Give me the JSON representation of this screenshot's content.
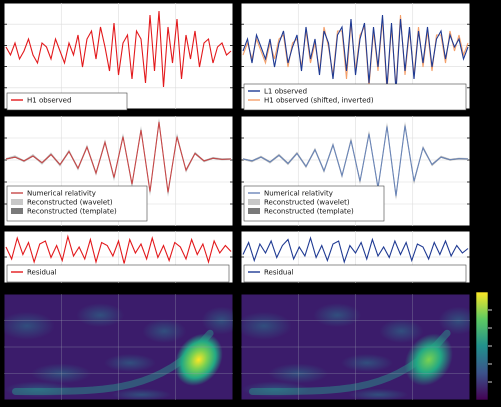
{
  "colors": {
    "h1": "#e3191c",
    "l1": "#1f3a93",
    "h1_inverted": "#f4a06b",
    "nr_h1": "#c84848",
    "nr_l1": "#6b86b8",
    "band_light": "#c8c8c8",
    "band_dark": "#7a7a7a",
    "panel_bg": "#ffffff",
    "grid": "#dcdcdc"
  },
  "legends": {
    "h1_observed": "H1 observed",
    "l1_observed": "L1 observed",
    "h1_shifted_inverted": "H1 observed (shifted, inverted)",
    "numerical_relativity": "Numerical relativity",
    "reconstructed_wavelet": "Reconstructed (wavelet)",
    "reconstructed_template": "Reconstructed (template)",
    "residual": "Residual"
  },
  "chart_data": [
    {
      "type": "line",
      "panel": "h1-observed",
      "title": "",
      "xlabel": "",
      "ylabel": "",
      "x": [
        0,
        0.02,
        0.04,
        0.06,
        0.08,
        0.1,
        0.12,
        0.14,
        0.16,
        0.18,
        0.2,
        0.22,
        0.24,
        0.26,
        0.28,
        0.3,
        0.32,
        0.34,
        0.36,
        0.38,
        0.4,
        0.42,
        0.44,
        0.46,
        0.48,
        0.5,
        0.52,
        0.54,
        0.56,
        0.58,
        0.6,
        0.62,
        0.64,
        0.66,
        0.68,
        0.7,
        0.72,
        0.74,
        0.76,
        0.78,
        0.8,
        0.82,
        0.84,
        0.86,
        0.88,
        0.9,
        0.92,
        0.94,
        0.96,
        0.98,
        1.0
      ],
      "series": [
        {
          "name": "H1 observed",
          "values": [
            0.1,
            -0.1,
            0.2,
            -0.2,
            0.0,
            0.3,
            -0.1,
            -0.3,
            0.2,
            0.1,
            -0.2,
            0.3,
            0.0,
            -0.3,
            0.2,
            -0.1,
            0.4,
            -0.4,
            0.3,
            0.5,
            -0.2,
            0.6,
            0.1,
            -0.5,
            0.7,
            -0.6,
            0.2,
            0.4,
            -0.7,
            0.5,
            0.3,
            -0.8,
            0.9,
            -0.5,
            1.0,
            -0.9,
            0.6,
            -0.3,
            0.8,
            -0.7,
            0.4,
            -0.2,
            0.5,
            -0.4,
            0.2,
            0.3,
            -0.3,
            0.1,
            0.2,
            -0.1,
            0.0
          ]
        }
      ]
    },
    {
      "type": "line",
      "panel": "l1-observed",
      "title": "",
      "xlabel": "",
      "ylabel": "",
      "x": [
        0,
        0.02,
        0.04,
        0.06,
        0.08,
        0.1,
        0.12,
        0.14,
        0.16,
        0.18,
        0.2,
        0.22,
        0.24,
        0.26,
        0.28,
        0.3,
        0.32,
        0.34,
        0.36,
        0.38,
        0.4,
        0.42,
        0.44,
        0.46,
        0.48,
        0.5,
        0.52,
        0.54,
        0.56,
        0.58,
        0.6,
        0.62,
        0.64,
        0.66,
        0.68,
        0.7,
        0.72,
        0.74,
        0.76,
        0.78,
        0.8,
        0.82,
        0.84,
        0.86,
        0.88,
        0.9,
        0.92,
        0.94,
        0.96,
        0.98,
        1.0
      ],
      "series": [
        {
          "name": "L1 observed",
          "values": [
            0.0,
            0.3,
            -0.3,
            0.4,
            0.1,
            -0.2,
            0.3,
            -0.4,
            0.2,
            0.5,
            -0.3,
            0.1,
            0.4,
            -0.5,
            0.6,
            -0.2,
            0.3,
            -0.6,
            0.5,
            0.2,
            -0.7,
            0.4,
            0.6,
            -0.5,
            0.8,
            -0.6,
            0.3,
            0.7,
            -0.8,
            0.6,
            -0.4,
            0.9,
            -0.9,
            0.7,
            -1.0,
            0.8,
            -0.5,
            0.6,
            -0.7,
            0.5,
            -0.3,
            0.6,
            -0.4,
            0.3,
            0.5,
            -0.2,
            0.4,
            0.1,
            0.3,
            -0.2,
            0.1
          ]
        },
        {
          "name": "H1 observed (shifted, inverted)",
          "values": [
            -0.1,
            0.2,
            -0.2,
            0.3,
            0.0,
            -0.3,
            0.2,
            -0.2,
            0.3,
            0.4,
            -0.4,
            0.2,
            0.3,
            -0.4,
            0.5,
            -0.3,
            0.2,
            -0.5,
            0.6,
            0.1,
            -0.6,
            0.5,
            0.5,
            -0.7,
            0.7,
            -0.5,
            0.4,
            0.6,
            -0.9,
            0.5,
            -0.5,
            0.8,
            -1.0,
            0.6,
            -0.9,
            0.9,
            -0.6,
            0.5,
            -0.6,
            0.6,
            -0.4,
            0.5,
            -0.5,
            0.4,
            0.4,
            -0.3,
            0.5,
            0.0,
            0.4,
            -0.1,
            0.2
          ]
        }
      ]
    },
    {
      "type": "line",
      "panel": "h1-reconstruction",
      "title": "",
      "xlabel": "",
      "ylabel": "",
      "x": [
        0,
        0.04,
        0.08,
        0.12,
        0.16,
        0.2,
        0.24,
        0.28,
        0.32,
        0.36,
        0.4,
        0.44,
        0.48,
        0.52,
        0.56,
        0.6,
        0.64,
        0.68,
        0.72,
        0.76,
        0.8,
        0.84,
        0.88,
        0.92,
        0.96,
        1.0
      ],
      "series": [
        {
          "name": "Numerical relativity",
          "values": [
            0.0,
            0.05,
            -0.05,
            0.08,
            -0.1,
            0.12,
            -0.15,
            0.2,
            -0.25,
            0.32,
            -0.38,
            0.45,
            -0.5,
            0.6,
            -0.68,
            0.78,
            -0.88,
            1.0,
            -0.9,
            0.6,
            -0.3,
            0.15,
            -0.05,
            0.02,
            -0.01,
            0.0
          ]
        },
        {
          "name": "Reconstructed (wavelet)",
          "values": [
            0.0,
            0.07,
            -0.06,
            0.1,
            -0.12,
            0.14,
            -0.17,
            0.22,
            -0.27,
            0.34,
            -0.4,
            0.47,
            -0.53,
            0.62,
            -0.7,
            0.8,
            -0.9,
            1.0,
            -0.92,
            0.62,
            -0.32,
            0.16,
            -0.06,
            0.03,
            -0.01,
            0.0
          ]
        },
        {
          "name": "Reconstructed (template)",
          "values": [
            0.0,
            0.05,
            -0.05,
            0.08,
            -0.1,
            0.12,
            -0.15,
            0.2,
            -0.25,
            0.32,
            -0.38,
            0.45,
            -0.5,
            0.6,
            -0.68,
            0.78,
            -0.88,
            1.0,
            -0.9,
            0.6,
            -0.3,
            0.15,
            -0.05,
            0.02,
            -0.01,
            0.0
          ]
        }
      ]
    },
    {
      "type": "line",
      "panel": "l1-reconstruction",
      "title": "",
      "xlabel": "",
      "ylabel": "",
      "x": [
        0,
        0.04,
        0.08,
        0.12,
        0.16,
        0.2,
        0.24,
        0.28,
        0.32,
        0.36,
        0.4,
        0.44,
        0.48,
        0.52,
        0.56,
        0.6,
        0.64,
        0.68,
        0.72,
        0.76,
        0.8,
        0.84,
        0.88,
        0.92,
        0.96,
        1.0
      ],
      "series": [
        {
          "name": "Numerical relativity",
          "values": [
            0.0,
            -0.05,
            0.05,
            -0.08,
            0.1,
            -0.12,
            0.15,
            -0.2,
            0.25,
            -0.32,
            0.38,
            -0.45,
            0.5,
            -0.6,
            0.68,
            -0.78,
            0.88,
            -1.0,
            0.9,
            -0.6,
            0.3,
            -0.15,
            0.05,
            -0.02,
            0.01,
            0.0
          ]
        },
        {
          "name": "Reconstructed (wavelet)",
          "values": [
            0.0,
            -0.06,
            0.06,
            -0.09,
            0.11,
            -0.13,
            0.16,
            -0.21,
            0.26,
            -0.33,
            0.39,
            -0.46,
            0.52,
            -0.61,
            0.69,
            -0.79,
            0.89,
            -1.0,
            0.91,
            -0.61,
            0.31,
            -0.16,
            0.06,
            -0.02,
            0.01,
            0.0
          ]
        },
        {
          "name": "Reconstructed (template)",
          "values": [
            0.0,
            -0.05,
            0.05,
            -0.08,
            0.1,
            -0.12,
            0.15,
            -0.2,
            0.25,
            -0.32,
            0.38,
            -0.45,
            0.5,
            -0.6,
            0.68,
            -0.78,
            0.88,
            -1.0,
            0.9,
            -0.6,
            0.3,
            -0.15,
            0.05,
            -0.02,
            0.01,
            0.0
          ]
        }
      ]
    },
    {
      "type": "line",
      "panel": "h1-residual",
      "title": "",
      "xlabel": "",
      "ylabel": "",
      "x": [
        0,
        0.025,
        0.05,
        0.075,
        0.1,
        0.125,
        0.15,
        0.175,
        0.2,
        0.225,
        0.25,
        0.275,
        0.3,
        0.325,
        0.35,
        0.375,
        0.4,
        0.425,
        0.45,
        0.475,
        0.5,
        0.525,
        0.55,
        0.575,
        0.6,
        0.625,
        0.65,
        0.675,
        0.7,
        0.725,
        0.75,
        0.775,
        0.8,
        0.825,
        0.85,
        0.875,
        0.9,
        0.925,
        0.95,
        0.975,
        1.0
      ],
      "series": [
        {
          "name": "Residual",
          "values": [
            0.2,
            -0.6,
            0.8,
            -0.3,
            0.5,
            -0.8,
            0.4,
            0.6,
            -0.5,
            0.3,
            -0.7,
            0.9,
            -0.4,
            0.2,
            -0.6,
            0.7,
            -0.8,
            0.5,
            0.3,
            -0.4,
            0.6,
            -0.9,
            0.7,
            -0.2,
            0.4,
            -0.6,
            0.8,
            -0.5,
            0.3,
            -0.7,
            0.5,
            0.2,
            -0.6,
            0.7,
            -0.3,
            0.4,
            -0.8,
            0.6,
            -0.2,
            0.3,
            -0.1
          ]
        }
      ]
    },
    {
      "type": "line",
      "panel": "l1-residual",
      "title": "",
      "xlabel": "",
      "ylabel": "",
      "x": [
        0,
        0.025,
        0.05,
        0.075,
        0.1,
        0.125,
        0.15,
        0.175,
        0.2,
        0.225,
        0.25,
        0.275,
        0.3,
        0.325,
        0.35,
        0.375,
        0.4,
        0.425,
        0.45,
        0.475,
        0.5,
        0.525,
        0.55,
        0.575,
        0.6,
        0.625,
        0.65,
        0.675,
        0.7,
        0.725,
        0.75,
        0.775,
        0.8,
        0.825,
        0.85,
        0.875,
        0.9,
        0.925,
        0.95,
        0.975,
        1.0
      ],
      "series": [
        {
          "name": "Residual",
          "values": [
            -0.3,
            0.5,
            -0.7,
            0.4,
            -0.2,
            0.6,
            -0.5,
            0.3,
            0.7,
            -0.6,
            0.2,
            -0.4,
            0.8,
            -0.5,
            0.3,
            -0.7,
            0.4,
            0.6,
            -0.8,
            0.3,
            -0.2,
            0.5,
            -0.6,
            0.7,
            -0.4,
            0.2,
            -0.5,
            0.6,
            -0.3,
            0.5,
            -0.7,
            0.4,
            0.2,
            -0.6,
            0.5,
            -0.3,
            0.6,
            -0.4,
            0.3,
            -0.2,
            0.1
          ]
        }
      ]
    },
    {
      "type": "heatmap",
      "panel": "h1-spectrogram",
      "colormap": "viridis",
      "grid": true,
      "hotspot": {
        "x": 0.85,
        "y": 0.62,
        "intensity": 0.95
      }
    },
    {
      "type": "heatmap",
      "panel": "l1-spectrogram",
      "colormap": "viridis",
      "grid": true,
      "hotspot": {
        "x": 0.82,
        "y": 0.62,
        "intensity": 0.65
      }
    }
  ]
}
